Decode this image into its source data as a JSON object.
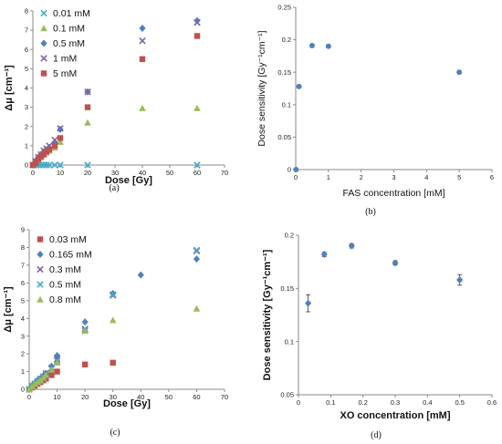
{
  "chart_data": [
    {
      "panel": "a",
      "type": "scatter",
      "caption": "(a)",
      "xlabel": "Dose [Gy]",
      "ylabel": "Δμ [cm⁻¹]",
      "xlim": [
        0,
        70
      ],
      "xticks": [
        0,
        10,
        20,
        30,
        40,
        50,
        60,
        70
      ],
      "ylim": [
        0,
        8
      ],
      "yticks": [
        0,
        1,
        2,
        3,
        4,
        5,
        6,
        7,
        8
      ],
      "grid": false,
      "legend": "top-left",
      "series": [
        {
          "name": "0.01 mM",
          "marker": "x",
          "color": "#46aac8",
          "x": [
            0,
            1,
            2,
            3,
            4,
            5,
            6,
            8,
            10,
            20,
            60
          ],
          "y": [
            0,
            0,
            0,
            0,
            0,
            0,
            0,
            0,
            0,
            0,
            0
          ]
        },
        {
          "name": "0.1 mM",
          "marker": "triangle",
          "color": "#9bbb59",
          "x": [
            0,
            1,
            2,
            3,
            4,
            5,
            6,
            8,
            10,
            20,
            40,
            60
          ],
          "y": [
            0,
            0.15,
            0.3,
            0.4,
            0.55,
            0.65,
            0.75,
            0.9,
            1.2,
            2.2,
            2.95,
            2.95
          ]
        },
        {
          "name": "0.5 mM",
          "marker": "diamond",
          "color": "#4f81bd",
          "x": [
            0,
            1,
            2,
            3,
            4,
            5,
            6,
            8,
            10,
            20,
            40,
            60
          ],
          "y": [
            0,
            0.2,
            0.4,
            0.55,
            0.7,
            0.8,
            0.9,
            1.1,
            1.85,
            3.8,
            7.1,
            7.5
          ]
        },
        {
          "name": "1 mM",
          "marker": "x",
          "color": "#8064a2",
          "x": [
            0,
            1,
            2,
            3,
            4,
            5,
            6,
            8,
            10,
            20,
            40,
            60
          ],
          "y": [
            0,
            0.2,
            0.4,
            0.55,
            0.75,
            0.85,
            1.0,
            1.3,
            1.9,
            3.8,
            6.45,
            7.4
          ]
        },
        {
          "name": "5 mM",
          "marker": "square",
          "color": "#c0504d",
          "x": [
            0,
            1,
            2,
            3,
            4,
            5,
            6,
            8,
            10,
            20,
            40,
            60
          ],
          "y": [
            0,
            0.1,
            0.3,
            0.45,
            0.55,
            0.7,
            0.8,
            1.0,
            1.4,
            3.0,
            5.5,
            6.7
          ]
        }
      ]
    },
    {
      "panel": "b",
      "type": "scatter",
      "caption": "(b)",
      "xlabel": "FAS concentration [mM]",
      "ylabel": "Dose sensitivity [Gy⁻¹cm⁻¹]",
      "xlim": [
        0,
        6
      ],
      "xticks": [
        0,
        1,
        2,
        3,
        4,
        5,
        6
      ],
      "ylim": [
        0,
        0.25
      ],
      "yticks": [
        0,
        0.05,
        0.1,
        0.15,
        0.2,
        0.25
      ],
      "grid": false,
      "legend": "none",
      "series": [
        {
          "marker": "circle",
          "color": "#4f81bd",
          "x": [
            0.01,
            0.1,
            0.5,
            1,
            5
          ],
          "y": [
            0,
            0.128,
            0.191,
            0.19,
            0.15
          ]
        }
      ]
    },
    {
      "panel": "c",
      "type": "scatter",
      "caption": "(c)",
      "xlabel": "Dose [Gy]",
      "ylabel": "Δμ [cm⁻¹]",
      "xlim": [
        0,
        70
      ],
      "xticks": [
        0,
        10,
        20,
        30,
        40,
        50,
        60,
        70
      ],
      "ylim": [
        0,
        9
      ],
      "yticks": [
        0,
        1,
        2,
        3,
        4,
        5,
        6,
        7,
        8,
        9
      ],
      "grid": false,
      "legend": "top-left",
      "series": [
        {
          "name": "0.03 mM",
          "marker": "square",
          "color": "#c0504d",
          "x": [
            0,
            1,
            2,
            3,
            4,
            5,
            6,
            8,
            10,
            20,
            30
          ],
          "y": [
            0,
            0.1,
            0.2,
            0.3,
            0.4,
            0.5,
            0.6,
            0.8,
            1.0,
            1.4,
            1.5
          ]
        },
        {
          "name": "0.165 mM",
          "marker": "diamond",
          "color": "#4f81bd",
          "x": [
            0,
            1,
            2,
            3,
            4,
            5,
            6,
            8,
            10,
            20,
            30,
            40,
            60
          ],
          "y": [
            0,
            0.2,
            0.35,
            0.5,
            0.6,
            0.75,
            0.9,
            1.3,
            1.9,
            3.8,
            5.4,
            6.45,
            7.35
          ]
        },
        {
          "name": "0.3 mM",
          "marker": "x",
          "color": "#8064a2",
          "x": [
            0,
            1,
            2,
            3,
            4,
            5,
            6,
            8,
            10,
            20,
            30,
            60
          ],
          "y": [
            0,
            0.2,
            0.3,
            0.45,
            0.6,
            0.7,
            0.9,
            1.2,
            1.7,
            3.4,
            5.3,
            7.8
          ]
        },
        {
          "name": "0.5 mM",
          "marker": "x",
          "color": "#46aac8",
          "x": [
            0,
            1,
            2,
            3,
            4,
            5,
            6,
            8,
            10,
            20,
            30,
            60
          ],
          "y": [
            0,
            0.2,
            0.3,
            0.45,
            0.55,
            0.7,
            0.85,
            1.15,
            1.6,
            3.3,
            5.35,
            7.85
          ]
        },
        {
          "name": "0.8 mM",
          "marker": "triangle",
          "color": "#9bbb59",
          "x": [
            0,
            1,
            2,
            3,
            4,
            5,
            6,
            8,
            10,
            20,
            30,
            60
          ],
          "y": [
            0,
            0.15,
            0.3,
            0.4,
            0.5,
            0.65,
            0.8,
            1.1,
            1.5,
            3.3,
            3.9,
            4.55
          ]
        }
      ]
    },
    {
      "panel": "d",
      "type": "scatter",
      "caption": "(d)",
      "xlabel": "XO concentration [mM]",
      "ylabel": "Dose sensitivity [Gy⁻¹cm⁻¹]",
      "xlim": [
        0,
        0.6
      ],
      "xticks": [
        0,
        0.1,
        0.2,
        0.3,
        0.4,
        0.5,
        0.6
      ],
      "ylim": [
        0.05,
        0.2
      ],
      "yticks": [
        0.05,
        0.1,
        0.15,
        0.2
      ],
      "grid": false,
      "legend": "none",
      "series": [
        {
          "marker": "diamond",
          "color": "#4f81bd",
          "error_bars": true,
          "x": [
            0.03,
            0.08,
            0.165,
            0.3,
            0.5
          ],
          "y": [
            0.136,
            0.182,
            0.19,
            0.174,
            0.158
          ],
          "err": [
            0.008,
            0.002,
            0.002,
            0.002,
            0.005
          ]
        }
      ]
    }
  ]
}
